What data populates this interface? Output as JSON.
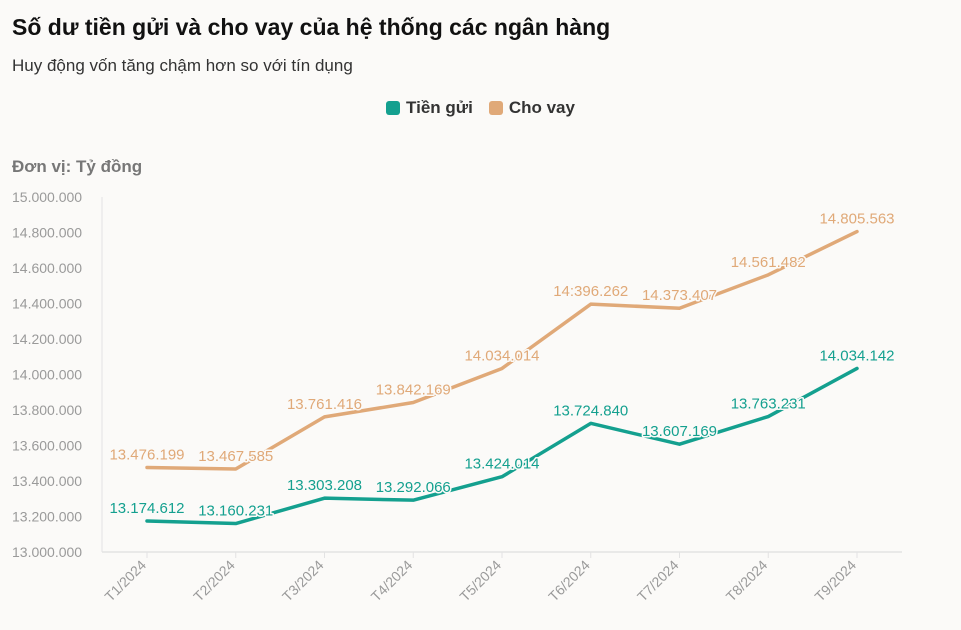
{
  "header": {
    "title": "Số dư tiền gửi và cho vay của hệ thống các ngân hàng",
    "subtitle": "Huy động vốn tăng chậm hơn so với tín dụng",
    "unit_label": "Đơn vị: Tỷ đồng"
  },
  "colors": {
    "deposits": "#14a08f",
    "loans": "#e0a978",
    "axis": "#e3e3e3",
    "tick_text": "#9a9a9a"
  },
  "chart_data": {
    "type": "line",
    "title": "Số dư tiền gửi và cho vay của hệ thống các ngân hàng",
    "subtitle": "Huy động vốn tăng chậm hơn so với tín dụng",
    "ylabel": "Đơn vị: Tỷ đồng",
    "categories": [
      "T1/2024",
      "T2/2024",
      "T3/2024",
      "T4/2024",
      "T5/2024",
      "T6/2024",
      "T7/2024",
      "T8/2024",
      "T9/2024"
    ],
    "ylim": [
      13000000,
      15000000
    ],
    "yticks": [
      13000000,
      13200000,
      13400000,
      13600000,
      13800000,
      14000000,
      14200000,
      14400000,
      14600000,
      14800000,
      15000000
    ],
    "ytick_labels": [
      "13.000.000",
      "13.200.000",
      "13.400.000",
      "13.600.000",
      "13.800.000",
      "14.000.000",
      "14.200.000",
      "14.400.000",
      "14.600.000",
      "14.800.000",
      "15.000.000"
    ],
    "legend_position": "top-center",
    "grid": false,
    "series": [
      {
        "name": "Tiền gửi",
        "color": "#14a08f",
        "values": [
          13174612,
          13160231,
          13303208,
          13292066,
          13424014,
          13724840,
          13607169,
          13763231,
          14034142
        ],
        "labels": [
          "13.174.612",
          "13.160.231",
          "13.303.208",
          "13.292.066",
          "13.424.014",
          "13.724.840",
          "13.607.169",
          "13.763.231",
          "14.034.142"
        ]
      },
      {
        "name": "Cho vay",
        "color": "#e0a978",
        "values": [
          13476199,
          13467585,
          13761416,
          13842169,
          14034014,
          14396262,
          14373407,
          14561482,
          14805563
        ],
        "labels": [
          "13.476.199",
          "13.467.585",
          "13.761.416",
          "13.842.169",
          "14.034.014",
          "14:396.262",
          "14.373.407",
          "14.561.482",
          "14.805.563"
        ]
      }
    ]
  }
}
